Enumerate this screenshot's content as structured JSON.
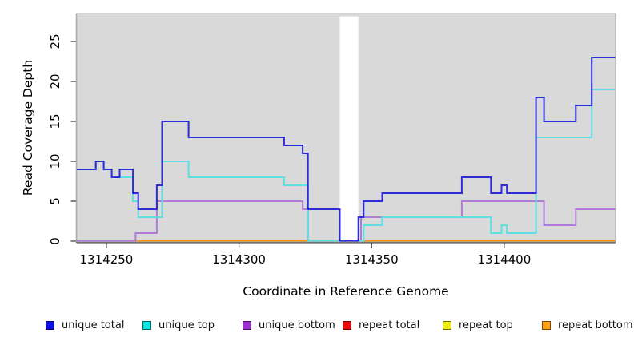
{
  "figure": {
    "background": "#ffffff",
    "plot_background": "#d9d9d9",
    "axis_color": "#3a3a3a",
    "box_color": "#ababab"
  },
  "chart_data": {
    "type": "line",
    "subtype": "step",
    "title": "",
    "xlabel": "Coordinate in Reference Genome",
    "ylabel": "Read Coverage Depth",
    "xlim": [
      1314238.7,
      1314442
    ],
    "ylim": [
      0,
      28.6
    ],
    "x_ticks": [
      1314250,
      1314300,
      1314350,
      1314400
    ],
    "y_ticks": [
      0,
      5,
      10,
      15,
      20,
      25
    ],
    "grid": false,
    "legend_position": "bottom",
    "gap_band": {
      "x_start": 1314338,
      "x_end": 1314345,
      "color": "#ffffff",
      "note": "white masked region spanning plot height; only the unique-total line crosses it at depth 0"
    },
    "series": [
      {
        "name": "repeat total",
        "color": "#e00000",
        "swatch_color": "#ee0909",
        "points": [
          [
            1314238.7,
            0
          ],
          [
            1314442,
            0
          ]
        ]
      },
      {
        "name": "repeat top",
        "color": "#f0f000",
        "swatch_color": "#f2ee10",
        "points": [
          [
            1314238.7,
            0
          ],
          [
            1314442,
            0
          ]
        ]
      },
      {
        "name": "repeat bottom",
        "color": "#ff9413",
        "swatch_color": "#ff9e0e",
        "points": [
          [
            1314238.7,
            0
          ],
          [
            1314442,
            0
          ]
        ]
      },
      {
        "name": "unique bottom",
        "color": "#b37bd9",
        "swatch_color": "#9c2fd1",
        "points": [
          [
            1314238.7,
            0
          ],
          [
            1314261,
            1
          ],
          [
            1314269,
            5
          ],
          [
            1314324,
            4
          ],
          [
            1314326,
            0
          ],
          [
            1314346,
            3
          ],
          [
            1314384,
            5
          ],
          [
            1314415,
            2
          ],
          [
            1314427,
            4
          ],
          [
            1314442,
            4
          ]
        ]
      },
      {
        "name": "unique top",
        "color": "#5fdde2",
        "swatch_color": "#06e3e3",
        "points": [
          [
            1314238.7,
            9
          ],
          [
            1314246,
            10
          ],
          [
            1314249,
            9
          ],
          [
            1314252,
            8
          ],
          [
            1314260,
            5
          ],
          [
            1314262,
            3
          ],
          [
            1314271,
            10
          ],
          [
            1314281,
            8
          ],
          [
            1314317,
            7
          ],
          [
            1314326,
            0
          ],
          [
            1314347,
            2
          ],
          [
            1314354,
            3
          ],
          [
            1314395,
            1
          ],
          [
            1314399,
            2
          ],
          [
            1314401,
            1
          ],
          [
            1314412,
            13
          ],
          [
            1314433,
            19
          ],
          [
            1314442,
            19
          ]
        ]
      },
      {
        "name": "unique total",
        "color": "#2c2cdb",
        "swatch_color": "#0f0fe8",
        "draw_above_gap": true,
        "points": [
          [
            1314238.7,
            9
          ],
          [
            1314246,
            10
          ],
          [
            1314249,
            9
          ],
          [
            1314252,
            8
          ],
          [
            1314255,
            9
          ],
          [
            1314260,
            6
          ],
          [
            1314262,
            4
          ],
          [
            1314269,
            7
          ],
          [
            1314271,
            15
          ],
          [
            1314281,
            13
          ],
          [
            1314317,
            12
          ],
          [
            1314324,
            11
          ],
          [
            1314326,
            4
          ],
          [
            1314338,
            0
          ],
          [
            1314345,
            3
          ],
          [
            1314347,
            5
          ],
          [
            1314354,
            6
          ],
          [
            1314384,
            8
          ],
          [
            1314395,
            6
          ],
          [
            1314399,
            7
          ],
          [
            1314401,
            6
          ],
          [
            1314412,
            18
          ],
          [
            1314415,
            15
          ],
          [
            1314427,
            17
          ],
          [
            1314433,
            23
          ],
          [
            1314442,
            23
          ]
        ]
      }
    ],
    "legend": [
      "unique total",
      "unique top",
      "unique bottom",
      "repeat total",
      "repeat top",
      "repeat bottom"
    ]
  }
}
